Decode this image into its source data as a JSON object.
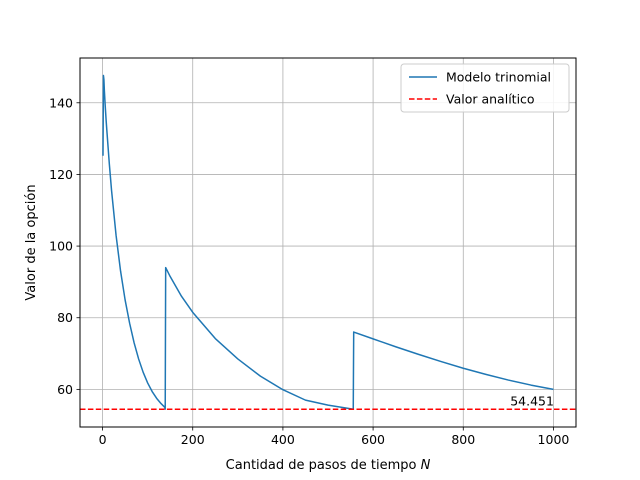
{
  "chart_data": {
    "type": "line",
    "xlabel": "Cantidad de pasos de tiempo",
    "xlabel_var": "N",
    "ylabel": "Valor de la opción",
    "xlim": [
      -50,
      1050
    ],
    "ylim": [
      49.5,
      152.5
    ],
    "x_ticks": [
      0,
      200,
      400,
      600,
      800,
      1000
    ],
    "y_ticks": [
      60,
      80,
      100,
      120,
      140
    ],
    "grid": true,
    "legend_position": "top-right",
    "series": [
      {
        "name": "Modelo trinomial",
        "color": "#1f77b4",
        "style": "solid",
        "x": [
          1,
          2,
          3,
          4,
          6,
          8,
          10,
          15,
          20,
          30,
          40,
          50,
          60,
          70,
          80,
          90,
          100,
          110,
          120,
          130,
          138,
          139,
          140,
          150,
          175,
          200,
          250,
          300,
          350,
          400,
          450,
          500,
          555,
          556,
          557,
          600,
          650,
          700,
          750,
          800,
          850,
          900,
          950,
          1000
        ],
        "y": [
          125.2,
          147.6,
          146.5,
          143.5,
          139.0,
          135.0,
          131.5,
          123.0,
          115.5,
          103.0,
          93.0,
          85.0,
          78.5,
          73.0,
          68.5,
          64.8,
          61.8,
          59.4,
          57.5,
          56.0,
          55.0,
          54.5,
          94.0,
          91.5,
          86.0,
          81.5,
          74.2,
          68.5,
          63.7,
          59.9,
          57.0,
          55.6,
          54.5,
          54.5,
          76.0,
          74.1,
          71.9,
          69.8,
          67.8,
          65.9,
          64.2,
          62.6,
          61.2,
          60.0
        ]
      },
      {
        "name": "Valor analítico",
        "color": "#ff0000",
        "style": "dashed",
        "y_constant": 54.451
      }
    ],
    "annotations": [
      {
        "text": "54.451",
        "x": 1000,
        "y": 54.451,
        "color": "#ff0000"
      }
    ]
  }
}
